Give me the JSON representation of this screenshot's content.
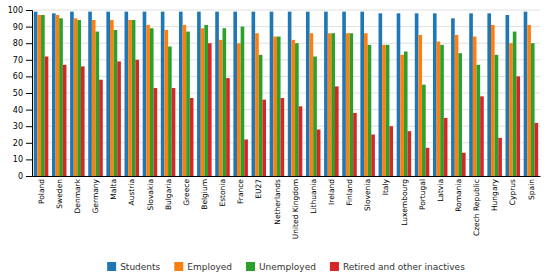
{
  "chart_data": {
    "type": "bar",
    "categories": [
      "Poland",
      "Sweden",
      "Denmark",
      "Germany",
      "Malta",
      "Austria",
      "Slovakia",
      "Bulgaria",
      "Greece",
      "Belgium",
      "Estonia",
      "France",
      "EU27",
      "Netherlands",
      "United Kingdom",
      "Lithuania",
      "Ireland",
      "Finland",
      "Slovenia",
      "Italy",
      "Luxembourg",
      "Portugal",
      "Latvia",
      "Romania",
      "Czech Republic",
      "Hungary",
      "Cyprus",
      "Spain"
    ],
    "series": [
      {
        "name": "Students",
        "values": [
          99,
          98,
          99,
          99,
          99,
          99,
          99,
          99,
          99,
          99,
          99,
          99,
          99,
          99,
          99,
          99,
          99,
          99,
          99,
          98,
          98,
          98,
          98,
          95,
          98,
          98,
          97,
          99
        ]
      },
      {
        "name": "Employed",
        "values": [
          97,
          97,
          95,
          94,
          94,
          94,
          91,
          88,
          91,
          89,
          82,
          80,
          86,
          84,
          82,
          86,
          86,
          86,
          86,
          79,
          73,
          85,
          81,
          85,
          84,
          91,
          80,
          91
        ]
      },
      {
        "name": "Unemployed",
        "values": [
          97,
          95,
          94,
          87,
          88,
          94,
          89,
          78,
          87,
          91,
          89,
          90,
          73,
          84,
          80,
          72,
          86,
          86,
          79,
          79,
          75,
          55,
          79,
          74,
          67,
          73,
          87,
          80
        ]
      },
      {
        "name": "Retired and other inactives",
        "values": [
          72,
          67,
          66,
          58,
          69,
          70,
          53,
          53,
          47,
          80,
          59,
          22,
          46,
          47,
          42,
          28,
          54,
          38,
          25,
          30,
          27,
          17,
          35,
          14,
          48,
          23,
          60,
          32
        ]
      }
    ],
    "ylim": [
      0,
      100
    ],
    "yticks": [
      0,
      10,
      20,
      30,
      40,
      50,
      60,
      70,
      80,
      90,
      100
    ],
    "grid": true,
    "legend": "bottom"
  }
}
